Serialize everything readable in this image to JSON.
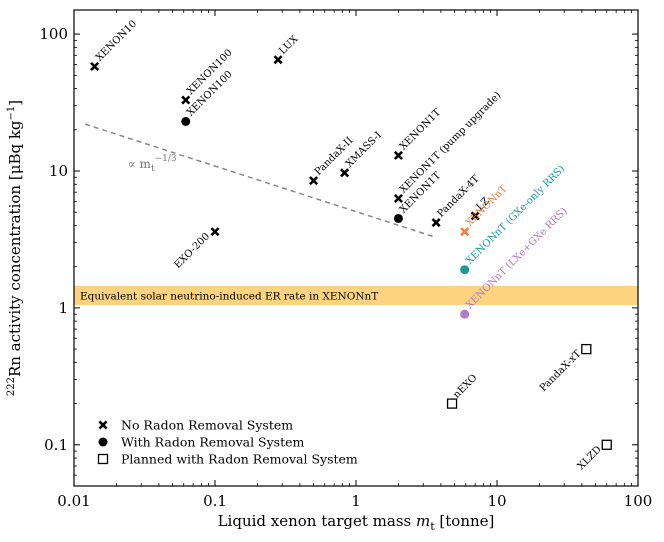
{
  "chart_data": {
    "type": "scatter",
    "xlabel": "Liquid xenon target mass m_t [tonne]",
    "xlabel_parts": {
      "main": "Liquid xenon target mass ",
      "var": "m",
      "sub": "t",
      "unit": " [tonne]"
    },
    "ylabel": "222Rn activity concentration [μBq kg−1]",
    "ylabel_parts": {
      "sup_iso": "222",
      "main": "Rn activity concentration [μBq kg",
      "sup_unit": "−1",
      "close": "]"
    },
    "xscale": "log",
    "yscale": "log",
    "xlim": [
      0.01,
      100
    ],
    "ylim": [
      0.05,
      150
    ],
    "xticks": [
      {
        "value": 0.01,
        "label": "0.01"
      },
      {
        "value": 0.1,
        "label": "0.1"
      },
      {
        "value": 1,
        "label": "1"
      },
      {
        "value": 10,
        "label": "10"
      },
      {
        "value": 100,
        "label": "100"
      }
    ],
    "yticks": [
      {
        "value": 0.1,
        "label": "0.1"
      },
      {
        "value": 1,
        "label": "1"
      },
      {
        "value": 10,
        "label": "10"
      },
      {
        "value": 100,
        "label": "100"
      }
    ],
    "band": {
      "ymin": 1.05,
      "ymax": 1.45,
      "color": "#fdd380",
      "label": "Equivalent solar neutrino-induced ER rate in XENONnT"
    },
    "trend_line": {
      "x": [
        0.012,
        3.6
      ],
      "y": [
        22,
        3.3
      ],
      "color": "#888888",
      "label_pre": "∝ m",
      "label_sub": "t",
      "label_sup": "−1/3",
      "label_x": 0.024,
      "label_y": 10.5
    },
    "series": [
      {
        "name": "No Radon Removal System",
        "marker": "x",
        "points": [
          {
            "label": "XENON10",
            "x": 0.014,
            "y": 58,
            "color": "#000000",
            "dir": "ur"
          },
          {
            "label": "XENON100",
            "x": 0.062,
            "y": 33,
            "color": "#000000",
            "dir": "ur"
          },
          {
            "label": "LUX",
            "x": 0.28,
            "y": 65,
            "color": "#000000",
            "dir": "ur"
          },
          {
            "label": "PandaX-II",
            "x": 0.5,
            "y": 8.5,
            "color": "#000000",
            "dir": "ur"
          },
          {
            "label": "XMASS-I",
            "x": 0.83,
            "y": 9.7,
            "color": "#000000",
            "dir": "ur"
          },
          {
            "label": "XENON1T",
            "x": 2.0,
            "y": 13,
            "color": "#000000",
            "dir": "ur"
          },
          {
            "label": "XENON1T (pump upgrade)",
            "x": 2.0,
            "y": 6.3,
            "color": "#000000",
            "dir": "ur"
          },
          {
            "label": "PandaX-4T",
            "x": 3.7,
            "y": 4.2,
            "color": "#000000",
            "dir": "ur"
          },
          {
            "label": "LZ",
            "x": 7.0,
            "y": 4.7,
            "color": "#000000",
            "dir": "ur"
          },
          {
            "label": "XENONnT",
            "x": 5.9,
            "y": 3.6,
            "color": "#ef7f3c",
            "dir": "ur"
          },
          {
            "label": "EXO-200",
            "x": 0.1,
            "y": 3.6,
            "color": "#000000",
            "dir": "dl"
          }
        ]
      },
      {
        "name": "With Radon Removal System",
        "marker": "o",
        "points": [
          {
            "label": "XENON100",
            "x": 0.062,
            "y": 23,
            "color": "#000000",
            "dir": "ur"
          },
          {
            "label": "XENON1T",
            "x": 2.0,
            "y": 4.5,
            "color": "#000000",
            "dir": "ur"
          },
          {
            "label": "XENONnT (GXe-only RRS)",
            "x": 5.9,
            "y": 1.9,
            "color": "#1a9b9b",
            "dir": "ur"
          },
          {
            "label": "XENONnT (LXe+GXe RRS)",
            "x": 5.9,
            "y": 0.9,
            "color": "#b07cc6",
            "dir": "ur"
          }
        ]
      },
      {
        "name": "Planned with Radon Removal System",
        "marker": "s",
        "points": [
          {
            "label": "nEXO",
            "x": 4.8,
            "y": 0.2,
            "color": "#000000",
            "dir": "ur"
          },
          {
            "label": "PandaX-xT",
            "x": 43,
            "y": 0.5,
            "color": "#000000",
            "dir": "dl"
          },
          {
            "label": "XLZD",
            "x": 60,
            "y": 0.1,
            "color": "#000000",
            "dir": "dl"
          }
        ]
      }
    ],
    "legend": {
      "position": "lower-left",
      "entries": [
        "No Radon Removal System",
        "With Radon Removal System",
        "Planned with Radon Removal System"
      ]
    }
  }
}
